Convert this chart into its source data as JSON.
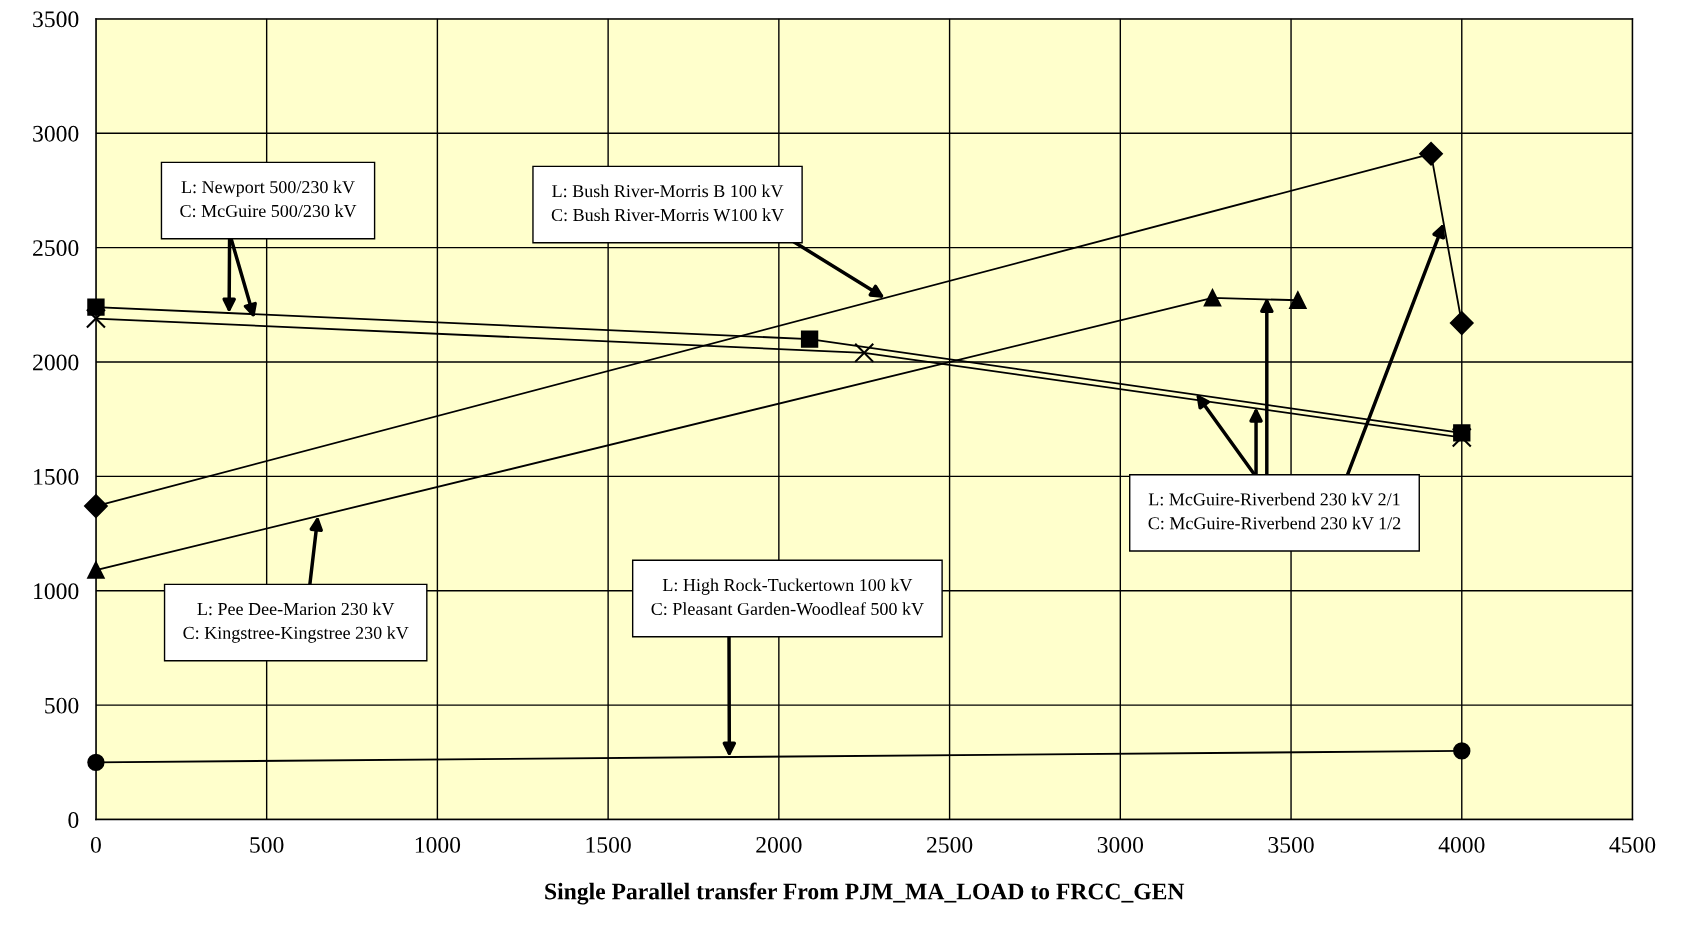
{
  "chart_data": {
    "type": "line",
    "xlabel": "Single Parallel transfer From PJM_MA_LOAD to FRCC_GEN",
    "series": [
      {
        "color": "#000000",
        "marker": "circle",
        "x": [
          0,
          4000
        ],
        "values": [
          250,
          300
        ]
      },
      {
        "color": "#000000",
        "marker": "diamond",
        "x": [
          0,
          3910,
          4000
        ],
        "values": [
          1370,
          2910,
          2170
        ]
      },
      {
        "color": "#000000",
        "marker": "triangle",
        "x": [
          0,
          3270,
          3520
        ],
        "values": [
          1090,
          2280,
          2270
        ]
      },
      {
        "color": "#000000",
        "marker": "square",
        "x": [
          0,
          2090,
          4000
        ],
        "values": [
          2240,
          2100,
          1690
        ]
      },
      {
        "color": "#000000",
        "marker": "cross",
        "x": [
          0,
          2250,
          4000
        ],
        "values": [
          2190,
          2040,
          1670
        ]
      }
    ],
    "xlim": [
      0,
      4500
    ],
    "xticks": [
      0,
      500,
      1000,
      1500,
      2000,
      2500,
      3000,
      3500,
      4000,
      4500
    ],
    "ylim": [
      0,
      3500
    ],
    "yticks": [
      0,
      500,
      1000,
      1500,
      2000,
      2500,
      3000,
      3500
    ],
    "grid": true,
    "annotations": [
      {
        "text": "L: Newport 500/230 kV\nC: McGuire 500/230 kV",
        "x": 390,
        "y": 2214
      },
      {
        "text": "L: Bush River-Morris B 100 kV\nC: Bush River-Morris W100 kV",
        "x": 2310,
        "y": 2280
      },
      {
        "text": "L: Pee Dee-Marion 230 kV\nC: Kingstree-Kingstree 230 kV",
        "x": 650,
        "y": 1327
      },
      {
        "text": "L: High Rock-Tuckertown 100 kV\nC: Pleasant Garden-Woodleaf 500 kV",
        "x": 1855,
        "y": 273
      },
      {
        "text": "L: McGuire-Riverbend 230 kV 2/1\nC: McGuire-Riverbend 230 kV 1/2",
        "x": 3947,
        "y": 2607
      }
    ]
  }
}
